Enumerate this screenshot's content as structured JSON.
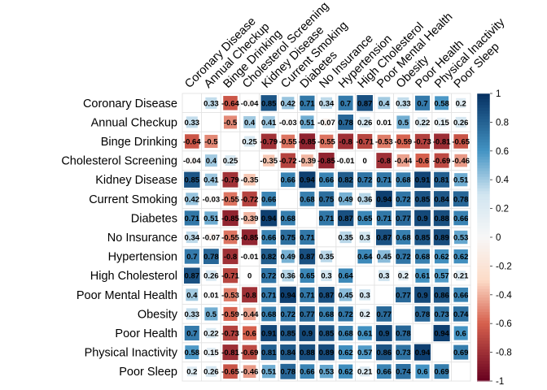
{
  "chart_data": {
    "type": "heatmap",
    "title": "",
    "xlabel": "",
    "ylabel": "",
    "labels": [
      "Coronary Disease",
      "Annual Checkup",
      "Binge Drinking",
      "Cholesterol Screening",
      "Kidney Disease",
      "Current Smoking",
      "Diabetes",
      "No Insurance",
      "Hypertension",
      "High Cholesterol",
      "Poor Mental Health",
      "Obesity",
      "Poor Health",
      "Physical Inactivity",
      "Poor Sleep"
    ],
    "matrix": [
      [
        null,
        0.33,
        -0.64,
        -0.04,
        0.85,
        0.42,
        0.71,
        0.34,
        0.7,
        0.87,
        0.4,
        0.33,
        0.7,
        0.58,
        0.2
      ],
      [
        0.33,
        null,
        -0.5,
        0.4,
        0.41,
        -0.03,
        0.51,
        -0.07,
        0.78,
        0.26,
        0.01,
        0.5,
        0.22,
        0.15,
        0.26
      ],
      [
        -0.64,
        -0.5,
        null,
        0.25,
        -0.79,
        -0.55,
        -0.85,
        -0.55,
        -0.8,
        -0.71,
        -0.53,
        -0.59,
        -0.73,
        -0.81,
        -0.65
      ],
      [
        -0.04,
        0.4,
        0.25,
        null,
        -0.35,
        -0.72,
        -0.39,
        -0.85,
        -0.01,
        0,
        -0.8,
        -0.44,
        -0.6,
        -0.69,
        -0.46
      ],
      [
        0.85,
        0.41,
        -0.79,
        -0.35,
        null,
        0.66,
        0.94,
        0.66,
        0.82,
        0.72,
        0.71,
        0.68,
        0.91,
        0.81,
        0.51
      ],
      [
        0.42,
        -0.03,
        -0.55,
        -0.72,
        0.66,
        null,
        0.68,
        0.75,
        0.49,
        0.36,
        0.94,
        0.72,
        0.85,
        0.84,
        0.78
      ],
      [
        0.71,
        0.51,
        -0.85,
        -0.39,
        0.94,
        0.68,
        null,
        0.71,
        0.87,
        0.65,
        0.71,
        0.77,
        0.9,
        0.88,
        0.66
      ],
      [
        0.34,
        -0.07,
        -0.55,
        -0.85,
        0.66,
        0.75,
        0.71,
        null,
        0.35,
        0.3,
        0.87,
        0.68,
        0.85,
        0.89,
        0.53
      ],
      [
        0.7,
        0.78,
        -0.8,
        -0.01,
        0.82,
        0.49,
        0.87,
        0.35,
        null,
        0.64,
        0.45,
        0.72,
        0.68,
        0.62,
        0.62
      ],
      [
        0.87,
        0.26,
        -0.71,
        0,
        0.72,
        0.36,
        0.65,
        0.3,
        0.64,
        null,
        0.3,
        0.2,
        0.61,
        0.57,
        0.21
      ],
      [
        0.4,
        0.01,
        -0.53,
        -0.8,
        0.71,
        0.94,
        0.71,
        0.87,
        0.45,
        0.3,
        null,
        0.77,
        0.9,
        0.86,
        0.66
      ],
      [
        0.33,
        0.5,
        -0.59,
        -0.44,
        0.68,
        0.72,
        0.77,
        0.68,
        0.72,
        0.2,
        0.77,
        null,
        0.78,
        0.73,
        0.74
      ],
      [
        0.7,
        0.22,
        -0.73,
        -0.6,
        0.91,
        0.85,
        0.9,
        0.85,
        0.68,
        0.61,
        0.9,
        0.78,
        null,
        0.94,
        0.6
      ],
      [
        0.58,
        0.15,
        -0.81,
        -0.69,
        0.81,
        0.84,
        0.88,
        0.89,
        0.62,
        0.57,
        0.86,
        0.73,
        0.94,
        null,
        0.69
      ],
      [
        0.2,
        0.26,
        -0.65,
        -0.46,
        0.51,
        0.78,
        0.66,
        0.53,
        0.62,
        0.21,
        0.66,
        0.74,
        0.6,
        0.69,
        null
      ]
    ],
    "colorbar": {
      "range": [
        -1,
        1
      ],
      "ticks": [
        "1",
        "0.8",
        "0.6",
        "0.4",
        "0.2",
        "0",
        "-0.2",
        "-0.4",
        "-0.6",
        "-0.8",
        "-1"
      ],
      "colors": {
        "neg_strong": "#67001f",
        "neg_mid": "#d6604d",
        "neg_light": "#fddbc7",
        "zero": "#f7f7f7",
        "pos_light": "#d1e5f0",
        "pos_mid": "#4393c3",
        "pos_strong": "#053061"
      }
    },
    "grid": true,
    "legend": "right"
  }
}
